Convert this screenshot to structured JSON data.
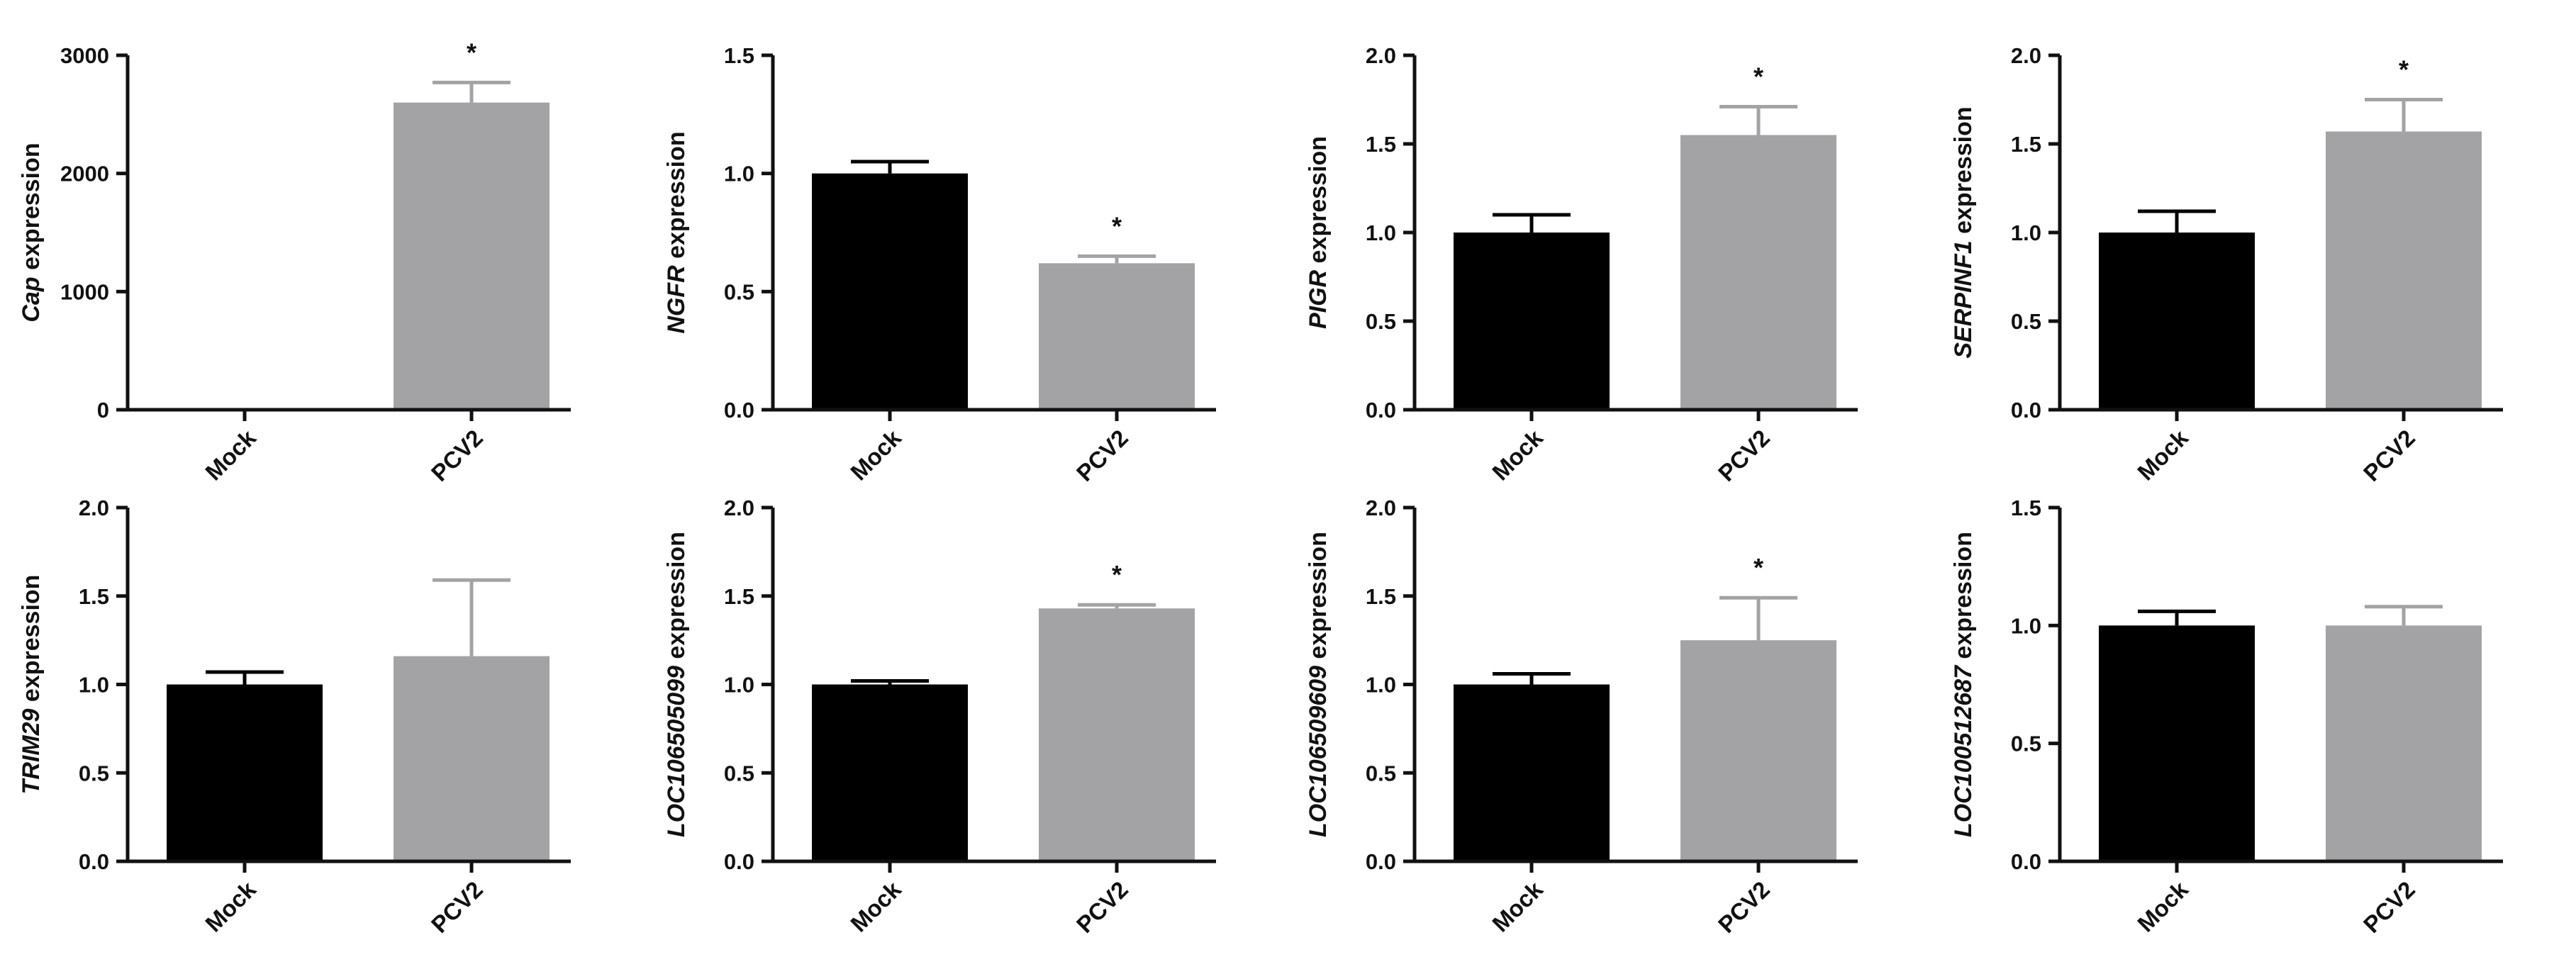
{
  "figure": {
    "colors": {
      "mock": "#000000",
      "pcv2": "#a3a3a6",
      "axis": "#111111"
    },
    "significance_mark": "*"
  },
  "chart_data": [
    {
      "type": "bar",
      "title": "",
      "xlabel": "",
      "gene": "Cap",
      "ylabel_suffix": " expression",
      "categories": [
        "Mock",
        "PCV2"
      ],
      "values": [
        0,
        2600
      ],
      "errors": [
        0,
        170
      ],
      "significant": [
        false,
        true
      ],
      "ylim": [
        0,
        3000
      ],
      "yticks": [
        "0",
        "1000",
        "2000",
        "3000"
      ]
    },
    {
      "type": "bar",
      "title": "",
      "xlabel": "",
      "gene": "NGFR",
      "ylabel_suffix": " expression",
      "categories": [
        "Mock",
        "PCV2"
      ],
      "values": [
        1.0,
        0.62
      ],
      "errors": [
        0.05,
        0.03
      ],
      "significant": [
        false,
        true
      ],
      "ylim": [
        0,
        1.5
      ],
      "yticks": [
        "0.0",
        "0.5",
        "1.0",
        "1.5"
      ]
    },
    {
      "type": "bar",
      "title": "",
      "xlabel": "",
      "gene": "PIGR",
      "ylabel_suffix": " expression",
      "categories": [
        "Mock",
        "PCV2"
      ],
      "values": [
        1.0,
        1.55
      ],
      "errors": [
        0.1,
        0.16
      ],
      "significant": [
        false,
        true
      ],
      "ylim": [
        0,
        2.0
      ],
      "yticks": [
        "0.0",
        "0.5",
        "1.0",
        "1.5",
        "2.0"
      ]
    },
    {
      "type": "bar",
      "title": "",
      "xlabel": "",
      "gene": "SERPINF1",
      "ylabel_suffix": " expression",
      "categories": [
        "Mock",
        "PCV2"
      ],
      "values": [
        1.0,
        1.57
      ],
      "errors": [
        0.12,
        0.18
      ],
      "significant": [
        false,
        true
      ],
      "ylim": [
        0,
        2.0
      ],
      "yticks": [
        "0.0",
        "0.5",
        "1.0",
        "1.5",
        "2.0"
      ]
    },
    {
      "type": "bar",
      "title": "",
      "xlabel": "",
      "gene": "TRIM29",
      "ylabel_suffix": " expression",
      "categories": [
        "Mock",
        "PCV2"
      ],
      "values": [
        1.0,
        1.16
      ],
      "errors": [
        0.07,
        0.43
      ],
      "significant": [
        false,
        false
      ],
      "ylim": [
        0,
        2.0
      ],
      "yticks": [
        "0.0",
        "0.5",
        "1.0",
        "1.5",
        "2.0"
      ]
    },
    {
      "type": "bar",
      "title": "",
      "xlabel": "",
      "gene": "LOC106505099",
      "ylabel_suffix": " expression",
      "categories": [
        "Mock",
        "PCV2"
      ],
      "values": [
        1.0,
        1.43
      ],
      "errors": [
        0.02,
        0.02
      ],
      "significant": [
        false,
        true
      ],
      "ylim": [
        0,
        2.0
      ],
      "yticks": [
        "0.0",
        "0.5",
        "1.0",
        "1.5",
        "2.0"
      ]
    },
    {
      "type": "bar",
      "title": "",
      "xlabel": "",
      "gene": "LOC106509609",
      "ylabel_suffix": " expression",
      "categories": [
        "Mock",
        "PCV2"
      ],
      "values": [
        1.0,
        1.25
      ],
      "errors": [
        0.06,
        0.24
      ],
      "significant": [
        false,
        true
      ],
      "ylim": [
        0,
        2.0
      ],
      "yticks": [
        "0.0",
        "0.5",
        "1.0",
        "1.5",
        "2.0"
      ]
    },
    {
      "type": "bar",
      "title": "",
      "xlabel": "",
      "gene": "LOC100512687",
      "ylabel_suffix": " expression",
      "categories": [
        "Mock",
        "PCV2"
      ],
      "values": [
        1.0,
        1.0
      ],
      "errors": [
        0.06,
        0.08
      ],
      "significant": [
        false,
        false
      ],
      "ylim": [
        0,
        1.5
      ],
      "yticks": [
        "0.0",
        "0.5",
        "1.0",
        "1.5"
      ]
    }
  ]
}
